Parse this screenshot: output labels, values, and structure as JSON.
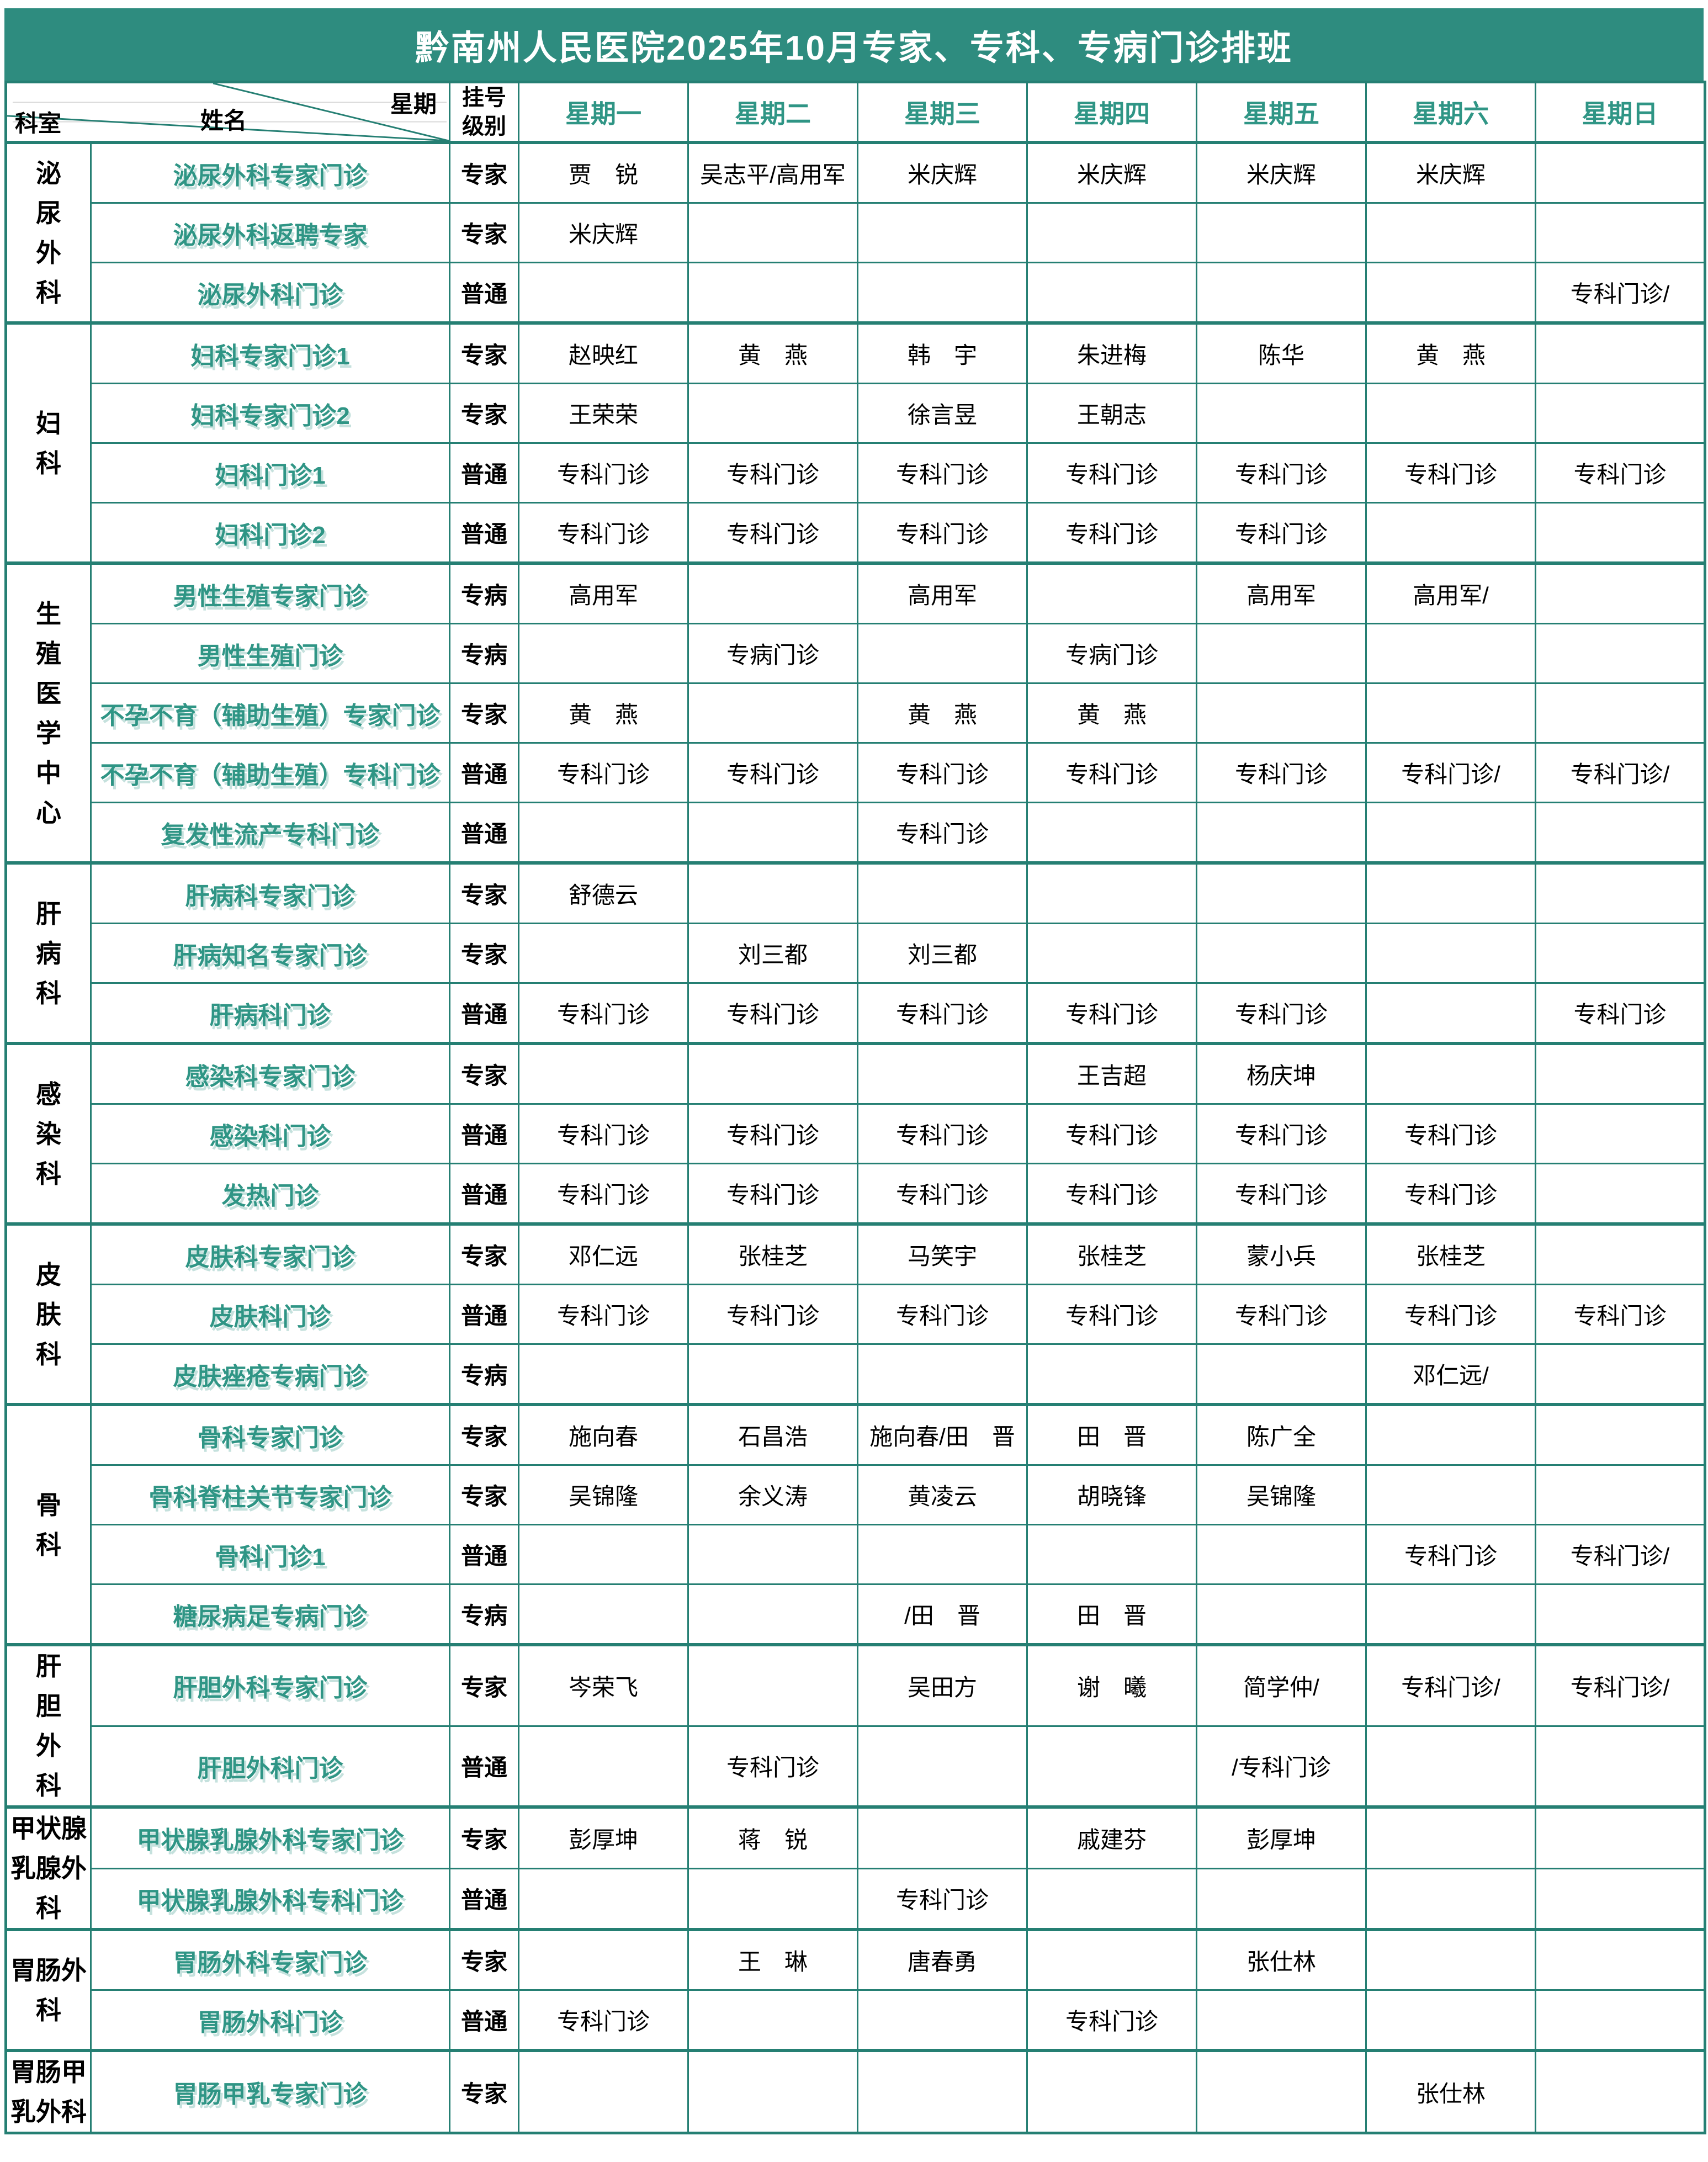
{
  "title": "黔南州人民医院2025年10月专家、专科、专病门诊排班",
  "colors": {
    "header_fill": "#2E8C7F",
    "border": "#257F73",
    "accent_text": "#2F9585",
    "title_text": "#FFFFFF",
    "body_text": "#000000"
  },
  "header": {
    "corner_week": "星期",
    "corner_name": "姓名",
    "corner_dept": "科室",
    "level_label_lines": [
      "挂号",
      "级别"
    ],
    "days": [
      "星期一",
      "星期二",
      "星期三",
      "星期四",
      "星期五",
      "星期六",
      "星期日"
    ]
  },
  "departments": [
    {
      "name_lines": [
        "泌",
        "尿",
        "外",
        "科"
      ],
      "rows": [
        {
          "clinic": "泌尿外科专家门诊",
          "level": "专家",
          "days": [
            "贾　锐",
            "吴志平/高用军",
            "米庆辉",
            "米庆辉",
            "米庆辉",
            "米庆辉",
            ""
          ]
        },
        {
          "clinic": "泌尿外科返聘专家",
          "level": "专家",
          "days": [
            "米庆辉",
            "",
            "",
            "",
            "",
            "",
            ""
          ]
        },
        {
          "clinic": "泌尿外科门诊",
          "level": "普通",
          "days": [
            "",
            "",
            "",
            "",
            "",
            "",
            "专科门诊/"
          ]
        }
      ]
    },
    {
      "name_lines": [
        "妇",
        "科"
      ],
      "rows": [
        {
          "clinic": "妇科专家门诊1",
          "level": "专家",
          "days": [
            "赵映红",
            "黄　燕",
            "韩　宇",
            "朱进梅",
            "陈华",
            "黄　燕",
            ""
          ]
        },
        {
          "clinic": "妇科专家门诊2",
          "level": "专家",
          "days": [
            "王荣荣",
            "",
            "徐言昱",
            "王朝志",
            "",
            "",
            ""
          ]
        },
        {
          "clinic": "妇科门诊1",
          "level": "普通",
          "days": [
            "专科门诊",
            "专科门诊",
            "专科门诊",
            "专科门诊",
            "专科门诊",
            "专科门诊",
            "专科门诊"
          ]
        },
        {
          "clinic": "妇科门诊2",
          "level": "普通",
          "days": [
            "专科门诊",
            "专科门诊",
            "专科门诊",
            "专科门诊",
            "专科门诊",
            "",
            ""
          ]
        }
      ]
    },
    {
      "name_lines": [
        "生",
        "殖",
        "医",
        "学",
        "中",
        "心"
      ],
      "rows": [
        {
          "clinic": "男性生殖专家门诊",
          "level": "专病",
          "days": [
            "高用军",
            "",
            "高用军",
            "",
            "高用军",
            "高用军/",
            ""
          ]
        },
        {
          "clinic": "男性生殖门诊",
          "level": "专病",
          "days": [
            "",
            "专病门诊",
            "",
            "专病门诊",
            "",
            "",
            ""
          ]
        },
        {
          "clinic": "不孕不育（辅助生殖）专家门诊",
          "level": "专家",
          "days": [
            "黄　燕",
            "",
            "黄　燕",
            "黄　燕",
            "",
            "",
            ""
          ]
        },
        {
          "clinic": "不孕不育（辅助生殖）专科门诊",
          "level": "普通",
          "days": [
            "专科门诊",
            "专科门诊",
            "专科门诊",
            "专科门诊",
            "专科门诊",
            "专科门诊/",
            "专科门诊/"
          ]
        },
        {
          "clinic": "复发性流产专科门诊",
          "level": "普通",
          "days": [
            "",
            "",
            "专科门诊",
            "",
            "",
            "",
            ""
          ]
        }
      ]
    },
    {
      "name_lines": [
        "肝",
        "病",
        "科"
      ],
      "rows": [
        {
          "clinic": "肝病科专家门诊",
          "level": "专家",
          "days": [
            "舒德云",
            "",
            "",
            "",
            "",
            "",
            ""
          ]
        },
        {
          "clinic": "肝病知名专家门诊",
          "level": "专家",
          "days": [
            "",
            "刘三都",
            "刘三都",
            "",
            "",
            "",
            ""
          ]
        },
        {
          "clinic": "肝病科门诊",
          "level": "普通",
          "days": [
            "专科门诊",
            "专科门诊",
            "专科门诊",
            "专科门诊",
            "专科门诊",
            "",
            "专科门诊"
          ]
        }
      ]
    },
    {
      "name_lines": [
        "感",
        "染",
        "科"
      ],
      "rows": [
        {
          "clinic": "感染科专家门诊",
          "level": "专家",
          "days": [
            "",
            "",
            "",
            "王吉超",
            "杨庆坤",
            "",
            ""
          ]
        },
        {
          "clinic": "感染科门诊",
          "level": "普通",
          "days": [
            "专科门诊",
            "专科门诊",
            "专科门诊",
            "专科门诊",
            "专科门诊",
            "专科门诊",
            ""
          ]
        },
        {
          "clinic": "发热门诊",
          "level": "普通",
          "days": [
            "专科门诊",
            "专科门诊",
            "专科门诊",
            "专科门诊",
            "专科门诊",
            "专科门诊",
            ""
          ]
        }
      ]
    },
    {
      "name_lines": [
        "皮",
        "肤",
        "科"
      ],
      "rows": [
        {
          "clinic": "皮肤科专家门诊",
          "level": "专家",
          "days": [
            "邓仁远",
            "张桂芝",
            "马笑宇",
            "张桂芝",
            "蒙小兵",
            "张桂芝",
            ""
          ]
        },
        {
          "clinic": "皮肤科门诊",
          "level": "普通",
          "days": [
            "专科门诊",
            "专科门诊",
            "专科门诊",
            "专科门诊",
            "专科门诊",
            "专科门诊",
            "专科门诊"
          ]
        },
        {
          "clinic": "皮肤痤疮专病门诊",
          "level": "专病",
          "days": [
            "",
            "",
            "",
            "",
            "",
            "邓仁远/",
            ""
          ]
        }
      ]
    },
    {
      "name_lines": [
        "骨",
        "科"
      ],
      "rows": [
        {
          "clinic": "骨科专家门诊",
          "level": "专家",
          "days": [
            "施向春",
            "石昌浩",
            "施向春/田　晋",
            "田　晋",
            "陈广全",
            "",
            ""
          ]
        },
        {
          "clinic": "骨科脊柱关节专家门诊",
          "level": "专家",
          "days": [
            "吴锦隆",
            "余义涛",
            "黄凌云",
            "胡晓锋",
            "吴锦隆",
            "",
            ""
          ]
        },
        {
          "clinic": "骨科门诊1",
          "level": "普通",
          "days": [
            "",
            "",
            "",
            "",
            "",
            "专科门诊",
            "专科门诊/"
          ]
        },
        {
          "clinic": "糖尿病足专病门诊",
          "level": "专病",
          "days": [
            "",
            "",
            "/田　晋",
            "田　晋",
            "",
            "",
            ""
          ]
        }
      ]
    },
    {
      "name_lines": [
        "肝",
        "胆",
        "外",
        "科"
      ],
      "rows": [
        {
          "clinic": "肝胆外科专家门诊",
          "level": "专家",
          "days": [
            "岑荣飞",
            "",
            "吴田方",
            "谢　曦",
            "简学仲/",
            "专科门诊/",
            "专科门诊/"
          ]
        },
        {
          "clinic": "肝胆外科门诊",
          "level": "普通",
          "days": [
            "",
            "专科门诊",
            "",
            "",
            "/专科门诊",
            "",
            ""
          ]
        }
      ]
    },
    {
      "name_lines": [
        "甲状腺",
        "乳腺外",
        "科"
      ],
      "rows": [
        {
          "clinic": "甲状腺乳腺外科专家门诊",
          "level": "专家",
          "days": [
            "彭厚坤",
            "蒋　锐",
            "",
            "戚建芬",
            "彭厚坤",
            "",
            ""
          ]
        },
        {
          "clinic": "甲状腺乳腺外科专科门诊",
          "level": "普通",
          "days": [
            "",
            "",
            "专科门诊",
            "",
            "",
            "",
            ""
          ]
        }
      ]
    },
    {
      "name_lines": [
        "胃肠外",
        "科"
      ],
      "rows": [
        {
          "clinic": "胃肠外科专家门诊",
          "level": "专家",
          "days": [
            "",
            "王　琳",
            "唐春勇",
            "",
            "张仕林",
            "",
            ""
          ]
        },
        {
          "clinic": "胃肠外科门诊",
          "level": "普通",
          "days": [
            "专科门诊",
            "",
            "",
            "专科门诊",
            "",
            "",
            ""
          ]
        }
      ]
    },
    {
      "name_lines": [
        "胃肠甲",
        "乳外科"
      ],
      "rows": [
        {
          "clinic": "胃肠甲乳专家门诊",
          "level": "专家",
          "days": [
            "",
            "",
            "",
            "",
            "",
            "张仕林",
            ""
          ]
        }
      ]
    }
  ]
}
